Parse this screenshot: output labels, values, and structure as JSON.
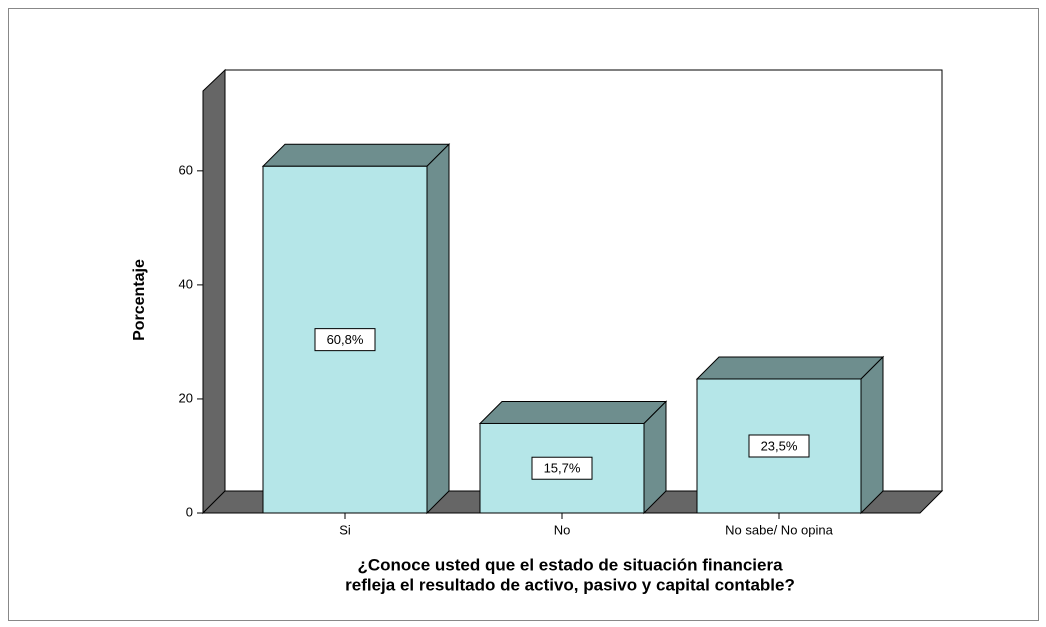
{
  "chart_data": {
    "type": "bar3d",
    "categories": [
      "Si",
      "No",
      "No sabe/ No opina"
    ],
    "values": [
      60.8,
      15.7,
      23.5
    ],
    "value_labels": [
      "60,8%",
      "15,7%",
      "23,5%"
    ],
    "ylabel": "Porcentaje",
    "xlabel": [
      "¿Conoce usted que el estado de situación financiera",
      "refleja el resultado de activo, pasivo y capital contable?"
    ],
    "ylim": [
      0,
      74
    ],
    "yticks": [
      0,
      20,
      40,
      60
    ],
    "color": "#b5e6e8"
  }
}
